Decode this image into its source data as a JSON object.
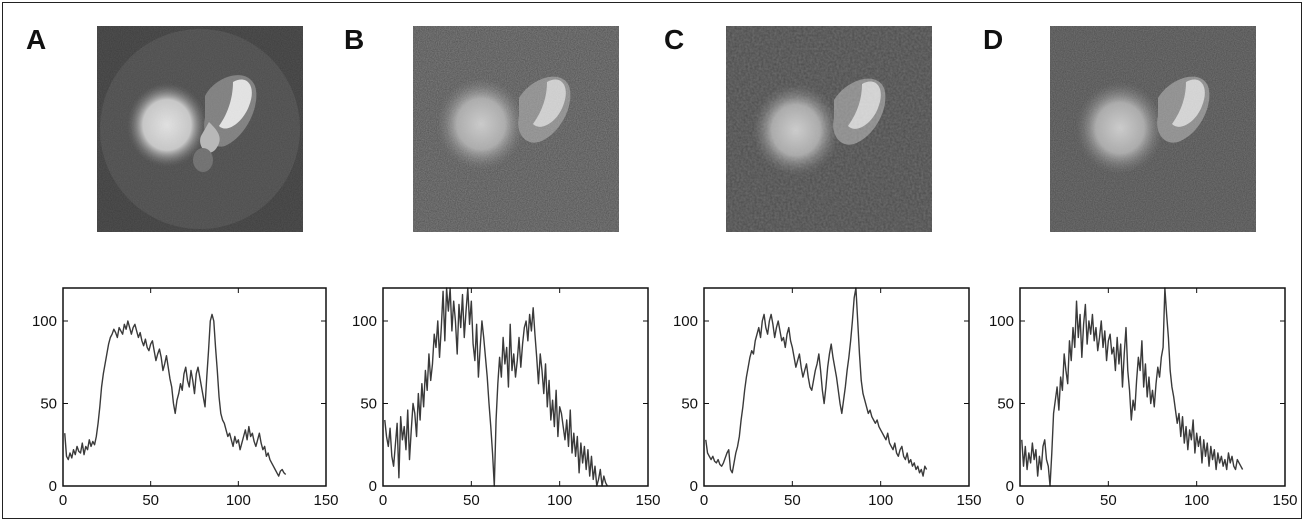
{
  "panels": [
    {
      "letter": "A",
      "image": "ct-image-fbp-reference"
    },
    {
      "letter": "B",
      "image": "ct-image-noisy-reconstruction"
    },
    {
      "letter": "C",
      "image": "ct-image-smoothed-reconstruction"
    },
    {
      "letter": "D",
      "image": "ct-image-iterative-reconstruction"
    }
  ],
  "colors": {
    "line": "#3a3a3a",
    "axis": "#111111",
    "frame": "#222222"
  },
  "chart_data": [
    {
      "type": "line",
      "panel": "A",
      "title": "",
      "xlabel": "",
      "ylabel": "",
      "xlim": [
        0,
        150
      ],
      "ylim": [
        0,
        120
      ],
      "xticks": [
        0,
        50,
        100,
        150
      ],
      "yticks": [
        0,
        50,
        100
      ],
      "grid": false,
      "series": [
        {
          "x_start": 1,
          "values": [
            32,
            18,
            16,
            20,
            17,
            22,
            19,
            24,
            21,
            20,
            26,
            19,
            24,
            22,
            28,
            24,
            27,
            25,
            30,
            38,
            48,
            60,
            68,
            74,
            80,
            86,
            90,
            92,
            95,
            93,
            90,
            96,
            94,
            92,
            98,
            95,
            100,
            96,
            92,
            96,
            98,
            94,
            90,
            93,
            88,
            85,
            89,
            84,
            82,
            86,
            88,
            82,
            76,
            80,
            83,
            78,
            70,
            74,
            79,
            72,
            65,
            60,
            50,
            44,
            52,
            56,
            62,
            58,
            68,
            72,
            64,
            60,
            70,
            64,
            56,
            68,
            72,
            66,
            60,
            54,
            48,
            66,
            82,
            100,
            104,
            100,
            84,
            70,
            54,
            44,
            40,
            38,
            34,
            30,
            32,
            28,
            24,
            30,
            26,
            28,
            22,
            26,
            30,
            34,
            28,
            36,
            30,
            32,
            27,
            24,
            28,
            32,
            26,
            22,
            24,
            18,
            20,
            16,
            14,
            12,
            10,
            8,
            6,
            9,
            10,
            8,
            7
          ]
        }
      ]
    },
    {
      "type": "line",
      "panel": "B",
      "title": "",
      "xlabel": "",
      "ylabel": "",
      "xlim": [
        0,
        150
      ],
      "ylim": [
        0,
        120
      ],
      "xticks": [
        0,
        50,
        100,
        150
      ],
      "yticks": [
        0,
        50,
        100
      ],
      "grid": false,
      "series": [
        {
          "x_start": 1,
          "values": [
            40,
            30,
            24,
            35,
            18,
            12,
            25,
            38,
            5,
            42,
            28,
            36,
            22,
            46,
            16,
            34,
            50,
            44,
            30,
            56,
            40,
            62,
            48,
            70,
            58,
            80,
            64,
            74,
            92,
            84,
            100,
            78,
            96,
            118,
            88,
            120,
            106,
            120,
            94,
            112,
            100,
            80,
            110,
            96,
            116,
            90,
            106,
            120,
            98,
            112,
            86,
            76,
            98,
            66,
            84,
            100,
            90,
            78,
            66,
            50,
            36,
            20,
            0,
            40,
            62,
            78,
            66,
            90,
            74,
            84,
            60,
            98,
            70,
            80,
            66,
            76,
            90,
            72,
            86,
            96,
            100,
            88,
            104,
            94,
            108,
            92,
            78,
            62,
            80,
            70,
            56,
            74,
            48,
            64,
            40,
            52,
            36,
            58,
            30,
            48,
            44,
            36,
            28,
            40,
            24,
            46,
            20,
            32,
            18,
            30,
            8,
            26,
            14,
            24,
            10,
            22,
            6,
            18,
            4,
            12,
            0,
            4,
            10,
            0,
            6,
            2,
            0
          ]
        }
      ]
    },
    {
      "type": "line",
      "panel": "C",
      "title": "",
      "xlabel": "",
      "ylabel": "",
      "xlim": [
        0,
        150
      ],
      "ylim": [
        0,
        120
      ],
      "xticks": [
        0,
        50,
        100,
        150
      ],
      "yticks": [
        0,
        50,
        100
      ],
      "grid": false,
      "series": [
        {
          "x_start": 1,
          "values": [
            28,
            20,
            18,
            16,
            18,
            15,
            14,
            16,
            13,
            12,
            14,
            17,
            20,
            22,
            10,
            8,
            14,
            20,
            24,
            30,
            40,
            48,
            58,
            66,
            72,
            78,
            82,
            80,
            88,
            92,
            96,
            90,
            100,
            104,
            96,
            92,
            100,
            104,
            98,
            90,
            96,
            100,
            94,
            88,
            90,
            84,
            92,
            96,
            88,
            84,
            78,
            72,
            76,
            80,
            72,
            66,
            70,
            74,
            66,
            60,
            58,
            64,
            70,
            74,
            80,
            70,
            58,
            50,
            60,
            72,
            80,
            86,
            78,
            72,
            66,
            58,
            50,
            44,
            52,
            60,
            70,
            78,
            88,
            100,
            114,
            120,
            100,
            80,
            64,
            56,
            52,
            48,
            44,
            46,
            42,
            40,
            38,
            40,
            36,
            34,
            32,
            30,
            28,
            32,
            26,
            24,
            22,
            26,
            20,
            18,
            22,
            24,
            18,
            16,
            20,
            14,
            16,
            12,
            14,
            10,
            12,
            8,
            10,
            6,
            12,
            10
          ]
        }
      ]
    },
    {
      "type": "line",
      "panel": "D",
      "title": "",
      "xlabel": "",
      "ylabel": "",
      "xlim": [
        0,
        150
      ],
      "ylim": [
        0,
        120
      ],
      "xticks": [
        0,
        50,
        100,
        150
      ],
      "yticks": [
        0,
        50,
        100
      ],
      "grid": false,
      "series": [
        {
          "x_start": 1,
          "values": [
            28,
            12,
            24,
            10,
            20,
            14,
            26,
            16,
            22,
            6,
            18,
            10,
            24,
            28,
            16,
            12,
            0,
            20,
            44,
            52,
            60,
            46,
            66,
            58,
            80,
            70,
            62,
            88,
            76,
            96,
            84,
            112,
            90,
            104,
            78,
            98,
            110,
            86,
            100,
            92,
            104,
            88,
            96,
            82,
            90,
            100,
            84,
            94,
            76,
            88,
            92,
            80,
            84,
            70,
            90,
            74,
            86,
            60,
            80,
            96,
            70,
            58,
            40,
            52,
            46,
            64,
            78,
            70,
            88,
            60,
            74,
            54,
            66,
            50,
            58,
            48,
            62,
            72,
            66,
            78,
            84,
            120,
            104,
            90,
            70,
            60,
            54,
            46,
            38,
            44,
            30,
            42,
            26,
            36,
            22,
            34,
            28,
            40,
            20,
            32,
            24,
            30,
            14,
            28,
            18,
            26,
            12,
            24,
            16,
            22,
            10,
            20,
            14,
            18,
            12,
            16,
            10,
            20,
            14,
            18,
            12,
            10,
            16,
            14,
            12,
            10
          ]
        }
      ]
    }
  ]
}
